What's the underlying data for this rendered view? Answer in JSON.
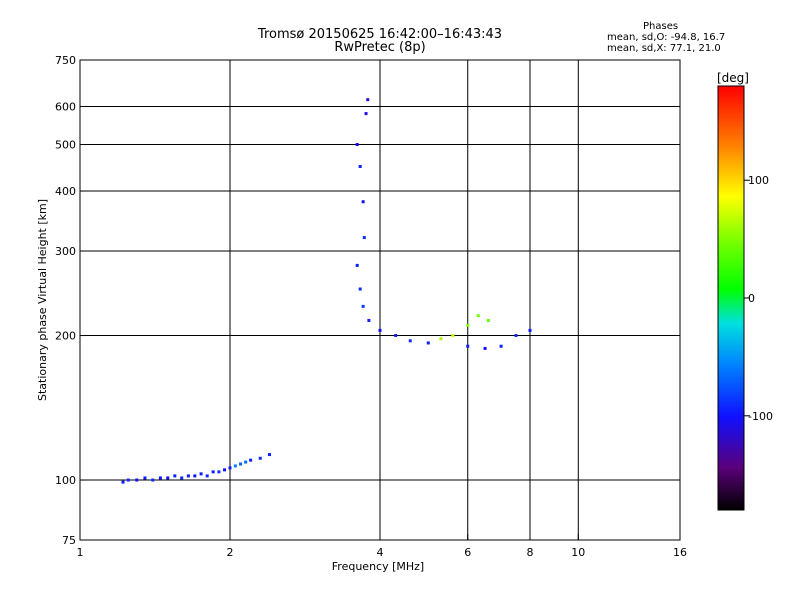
{
  "header": {
    "title_line1": "Tromsø 20150625 16:42:00–16:43:43",
    "title_line2": "RwPretec (8p)",
    "stats_title": "Phases",
    "stats_o": "mean, sd,O:  -94.8, 16.7",
    "stats_x": "mean, sd,X:  77.1, 21.0"
  },
  "colorbar": {
    "label": "[deg]",
    "ticks": [
      {
        "value": 100,
        "label": "100"
      },
      {
        "value": 0,
        "label": "0"
      },
      {
        "value": -100,
        "label": "-100"
      }
    ],
    "range": [
      -180,
      180
    ]
  },
  "chart_data": {
    "type": "scatter",
    "xlabel": "Frequency [MHz]",
    "ylabel": "Stationary phase Virtual Height [km]",
    "xscale": "log",
    "yscale": "log",
    "xlim": [
      1,
      16
    ],
    "ylim": [
      75,
      750
    ],
    "x_ticks": [
      1,
      2,
      4,
      6,
      8,
      10,
      16
    ],
    "y_ticks": [
      75,
      100,
      200,
      300,
      400,
      500,
      600,
      750
    ],
    "x_gridlines": [
      2,
      4,
      6,
      8,
      10
    ],
    "y_gridlines": [
      100,
      200,
      300,
      400,
      500,
      600
    ],
    "grid": true,
    "series": [
      {
        "points": [
          {
            "x": 1.22,
            "y": 99,
            "phase": -95
          },
          {
            "x": 1.25,
            "y": 100,
            "phase": -90
          },
          {
            "x": 1.3,
            "y": 100,
            "phase": -100
          },
          {
            "x": 1.35,
            "y": 101,
            "phase": -95
          },
          {
            "x": 1.4,
            "y": 100,
            "phase": -92
          },
          {
            "x": 1.45,
            "y": 101,
            "phase": -98
          },
          {
            "x": 1.5,
            "y": 101,
            "phase": -100
          },
          {
            "x": 1.55,
            "y": 102,
            "phase": -95
          },
          {
            "x": 1.6,
            "y": 101,
            "phase": -90
          },
          {
            "x": 1.65,
            "y": 102,
            "phase": -97
          },
          {
            "x": 1.7,
            "y": 102,
            "phase": -100
          },
          {
            "x": 1.75,
            "y": 103,
            "phase": -95
          },
          {
            "x": 1.8,
            "y": 102,
            "phase": -92
          },
          {
            "x": 1.85,
            "y": 104,
            "phase": -96
          },
          {
            "x": 1.9,
            "y": 104,
            "phase": -90
          },
          {
            "x": 1.95,
            "y": 105,
            "phase": -100
          },
          {
            "x": 2.0,
            "y": 106,
            "phase": -95
          },
          {
            "x": 2.05,
            "y": 107,
            "phase": -60
          },
          {
            "x": 2.1,
            "y": 108,
            "phase": -70
          },
          {
            "x": 2.15,
            "y": 109,
            "phase": -65
          },
          {
            "x": 2.2,
            "y": 110,
            "phase": -95
          },
          {
            "x": 2.3,
            "y": 111,
            "phase": -90
          },
          {
            "x": 2.4,
            "y": 113,
            "phase": -95
          },
          {
            "x": 3.6,
            "y": 500,
            "phase": -100
          },
          {
            "x": 3.65,
            "y": 450,
            "phase": -95
          },
          {
            "x": 3.7,
            "y": 380,
            "phase": -100
          },
          {
            "x": 3.72,
            "y": 320,
            "phase": -90
          },
          {
            "x": 3.75,
            "y": 580,
            "phase": -110
          },
          {
            "x": 3.78,
            "y": 620,
            "phase": -115
          },
          {
            "x": 3.6,
            "y": 280,
            "phase": -95
          },
          {
            "x": 3.65,
            "y": 250,
            "phase": -90
          },
          {
            "x": 3.7,
            "y": 230,
            "phase": -85
          },
          {
            "x": 3.8,
            "y": 215,
            "phase": -95
          },
          {
            "x": 4.0,
            "y": 205,
            "phase": -100
          },
          {
            "x": 4.3,
            "y": 200,
            "phase": -95
          },
          {
            "x": 4.6,
            "y": 195,
            "phase": -90
          },
          {
            "x": 5.0,
            "y": 193,
            "phase": -95
          },
          {
            "x": 5.3,
            "y": 197,
            "phase": 60
          },
          {
            "x": 5.6,
            "y": 200,
            "phase": 70
          },
          {
            "x": 6.0,
            "y": 210,
            "phase": 50
          },
          {
            "x": 6.3,
            "y": 220,
            "phase": 45
          },
          {
            "x": 6.6,
            "y": 215,
            "phase": 40
          },
          {
            "x": 6.0,
            "y": 190,
            "phase": -95
          },
          {
            "x": 6.5,
            "y": 188,
            "phase": -100
          },
          {
            "x": 7.0,
            "y": 190,
            "phase": -95
          },
          {
            "x": 7.5,
            "y": 200,
            "phase": -90
          },
          {
            "x": 8.0,
            "y": 205,
            "phase": -95
          }
        ]
      }
    ]
  }
}
